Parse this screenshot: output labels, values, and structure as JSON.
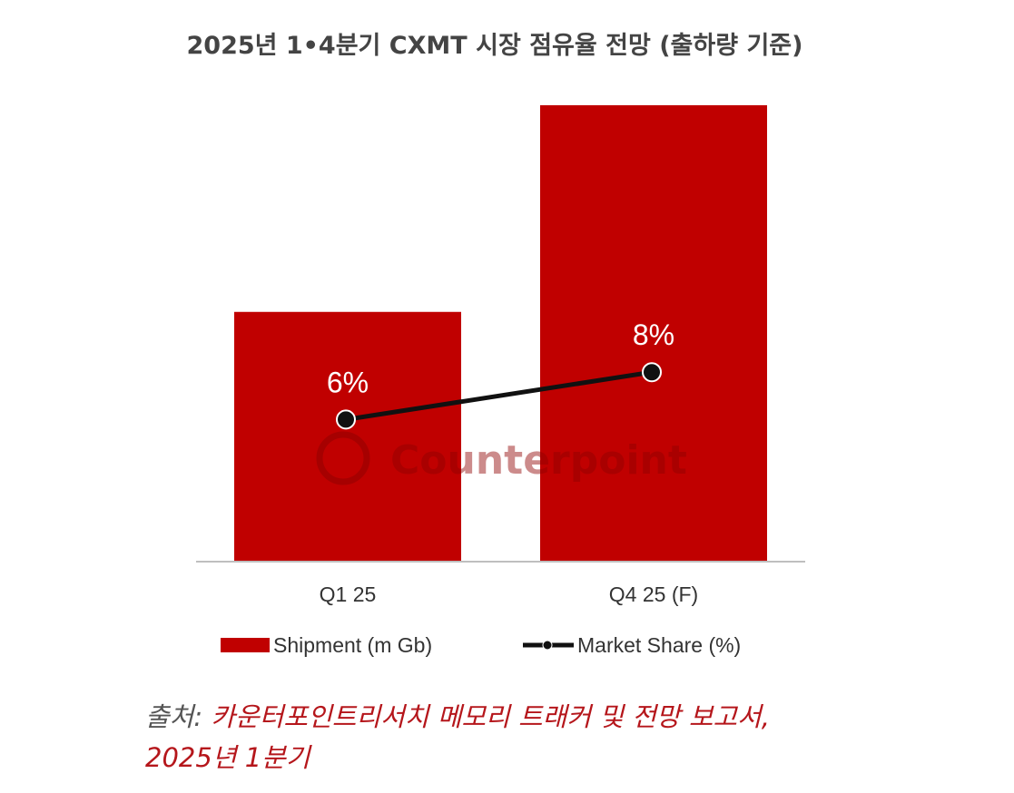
{
  "chart_data": {
    "type": "bar",
    "title": "2025년 1•4분기 CXMT 시장 점유율 전망 (출하량 기준)",
    "categories": [
      "Q1 25",
      "Q4 25 (F)"
    ],
    "series": [
      {
        "name": "Shipment (m Gb)",
        "kind": "bar",
        "values": [
          5.8,
          10.6
        ],
        "color": "#c00000"
      },
      {
        "name": "Market Share (%)",
        "kind": "line",
        "values": [
          6,
          8
        ],
        "labels": [
          "6%",
          "8%"
        ],
        "color": "#111111"
      }
    ],
    "ylim_bar": [
      0,
      11
    ],
    "ylim_share": [
      0,
      20
    ],
    "legend": "bottom",
    "grid": false,
    "watermark": "Counterpoint"
  },
  "source": {
    "label": "출처:",
    "text": "카운터포인트리서치 메모리 트래커 및 전망 보고서,",
    "line2": "2025년 1분기"
  }
}
